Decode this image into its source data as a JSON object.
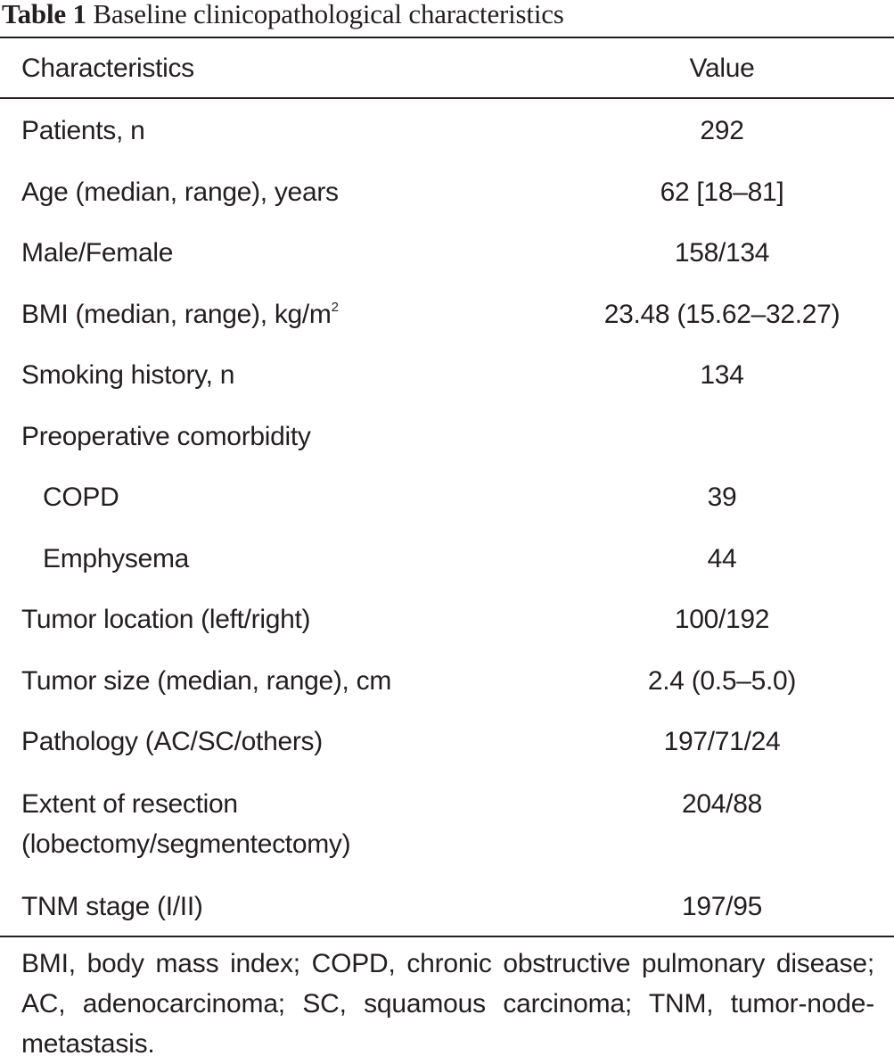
{
  "table": {
    "caption_label": "Table 1",
    "caption_text": "Baseline clinicopathological characteristics",
    "headers": {
      "characteristics": "Characteristics",
      "value": "Value"
    },
    "rows": [
      {
        "label": "Patients, n",
        "value": "292"
      },
      {
        "label": "Age (median, range), years",
        "value": "62 [18–81]"
      },
      {
        "label": "Male/Female",
        "value": "158/134"
      },
      {
        "label": "BMI (median, range), kg/m",
        "label_sup": "2",
        "value": "23.48 (15.62–32.27)"
      },
      {
        "label": "Smoking history, n",
        "value": "134"
      },
      {
        "label": "Preoperative comorbidity",
        "value": ""
      },
      {
        "label": "COPD",
        "value": "39"
      },
      {
        "label": "Emphysema",
        "value": "44"
      },
      {
        "label": "Tumor location (left/right)",
        "value": "100/192"
      },
      {
        "label": "Tumor size (median, range), cm",
        "value": "2.4 (0.5–5.0)"
      },
      {
        "label": "Pathology (AC/SC/others)",
        "value": "197/71/24"
      },
      {
        "label": "Extent of resection",
        "label_line2": "(lobectomy/segmentectomy)",
        "value": "204/88"
      },
      {
        "label": "TNM stage (I/II)",
        "value": "197/95"
      }
    ],
    "footnote": "BMI, body mass index; COPD, chronic obstructive pulmonary disease; AC, adenocarcinoma; SC, squamous carcinoma; TNM, tumor-node-metastasis."
  }
}
